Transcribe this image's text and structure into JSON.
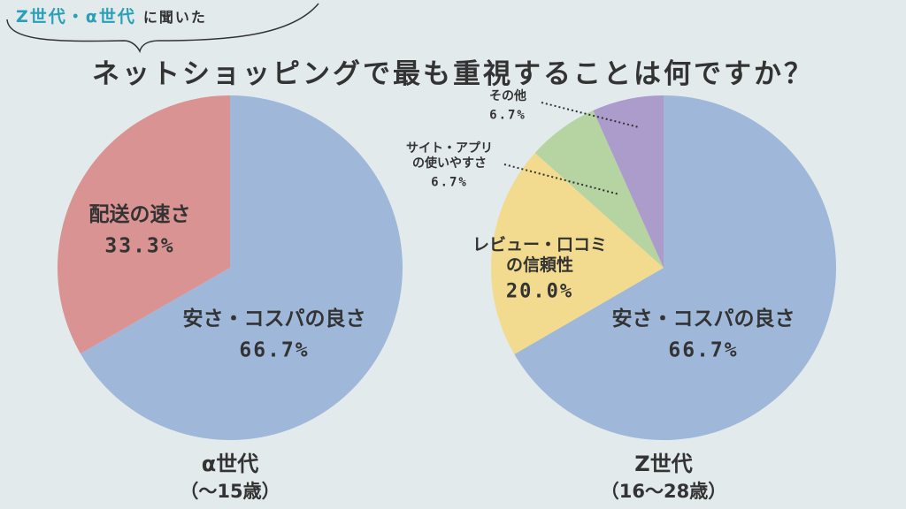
{
  "header": {
    "tag_accent": "Z世代・α世代",
    "tag_plain": "に聞いた",
    "title": "ネットショッピングで最も重視することは何ですか？"
  },
  "colors": {
    "background": "#e3eaec",
    "accent": "#2aa0b8",
    "text": "#333333"
  },
  "chart_data": [
    {
      "type": "pie",
      "group_label": "α世代",
      "group_sub": "（～15歳）",
      "slices": [
        {
          "label_lines": [
            "安さ・コスパの良さ"
          ],
          "value_label": "66.7%",
          "value": 66.7,
          "color": "#9fb8d9"
        },
        {
          "label_lines": [
            "配送の速さ"
          ],
          "value_label": "33.3%",
          "value": 33.3,
          "color": "#d99393"
        }
      ]
    },
    {
      "type": "pie",
      "group_label": "Z世代",
      "group_sub": "（16～28歳）",
      "slices": [
        {
          "label_lines": [
            "安さ・コスパの良さ"
          ],
          "value_label": "66.7%",
          "value": 66.7,
          "color": "#9fb8d9"
        },
        {
          "label_lines": [
            "レビュー・口コミ",
            "の信頼性"
          ],
          "value_label": "20.0%",
          "value": 20.0,
          "color": "#f2da8f"
        },
        {
          "label_lines": [
            "サイト・アプリ",
            "の使いやすさ"
          ],
          "value_label": "6.7%",
          "value": 6.7,
          "color": "#b5d4a2"
        },
        {
          "label_lines": [
            "その他"
          ],
          "value_label": "6.7%",
          "value": 6.7,
          "color": "#ab9ccb"
        }
      ]
    }
  ]
}
